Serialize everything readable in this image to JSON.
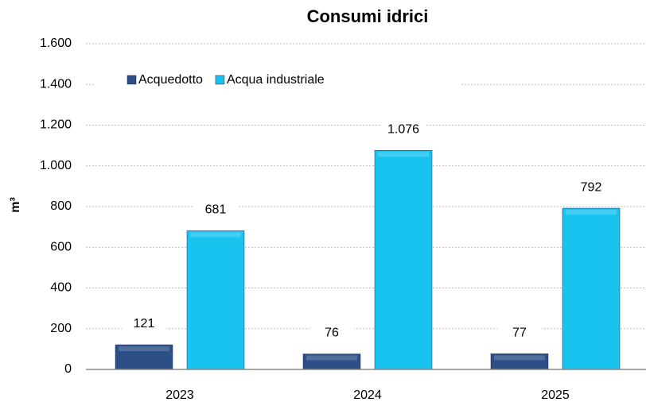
{
  "chart_data": {
    "type": "bar",
    "title": "Consumi idrici",
    "y_label": "m³",
    "categories": [
      "2023",
      "2024",
      "2025"
    ],
    "series": [
      {
        "name": "Acquedotto",
        "color": "#2b4f86",
        "values": [
          121,
          76,
          77
        ],
        "value_labels": [
          "121",
          "76",
          "77"
        ]
      },
      {
        "name": "Acqua industriale",
        "color": "#19c3f0",
        "values": [
          681,
          1076,
          792
        ],
        "value_labels": [
          "681",
          "1.076",
          "792"
        ]
      }
    ],
    "ylim": [
      0,
      1600
    ],
    "yticks": [
      0,
      200,
      400,
      600,
      800,
      {
        "value": 1000,
        "label": "1.000"
      },
      {
        "value": 1200,
        "label": "1.200"
      },
      {
        "value": 1400,
        "label": "1.400"
      },
      {
        "value": 1600,
        "label": "1.600"
      }
    ],
    "grid": true,
    "legend": "top-left"
  }
}
